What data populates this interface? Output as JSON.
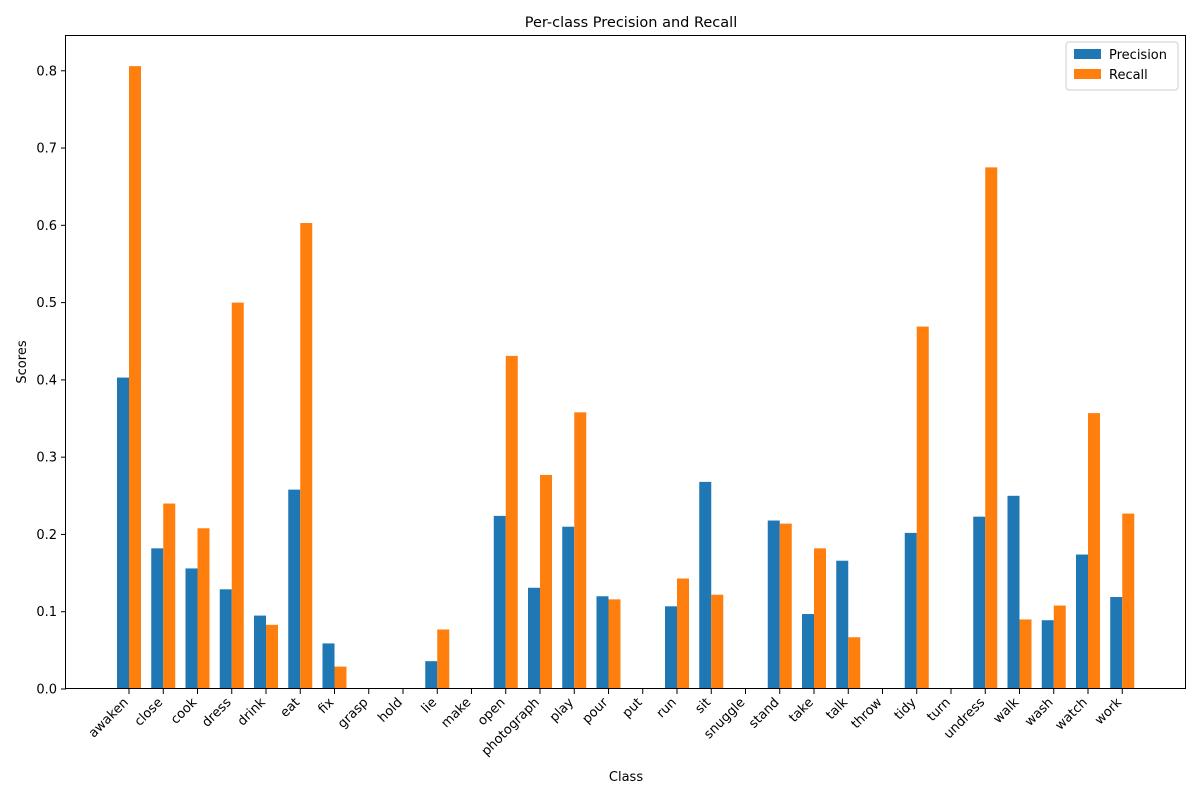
{
  "chart_data": {
    "type": "bar",
    "title": "Per-class Precision and Recall",
    "xlabel": "Class",
    "ylabel": "Scores",
    "ylim": [
      0,
      0.845
    ],
    "yticks": [
      0.0,
      0.1,
      0.2,
      0.3,
      0.4,
      0.5,
      0.6,
      0.7,
      0.8
    ],
    "ytick_labels": [
      "0.0",
      "0.1",
      "0.2",
      "0.3",
      "0.4",
      "0.5",
      "0.6",
      "0.7",
      "0.8"
    ],
    "grid": false,
    "legend_position": "top-right",
    "categories": [
      "awaken",
      "close",
      "cook",
      "dress",
      "drink",
      "eat",
      "fix",
      "grasp",
      "hold",
      "lie",
      "make",
      "open",
      "photograph",
      "play",
      "pour",
      "put",
      "run",
      "sit",
      "snuggle",
      "stand",
      "take",
      "talk",
      "throw",
      "tidy",
      "turn",
      "undress",
      "walk",
      "wash",
      "watch",
      "work"
    ],
    "series": [
      {
        "name": "Precision",
        "color": "#1f77b4",
        "values": [
          0.403,
          0.182,
          0.156,
          0.129,
          0.095,
          0.258,
          0.059,
          0.0,
          0.0,
          0.036,
          0.0,
          0.224,
          0.131,
          0.21,
          0.12,
          0.0,
          0.107,
          0.268,
          0.0,
          0.218,
          0.097,
          0.166,
          0.0,
          0.202,
          0.0,
          0.223,
          0.25,
          0.089,
          0.174,
          0.119
        ]
      },
      {
        "name": "Recall",
        "color": "#ff7f0e",
        "values": [
          0.806,
          0.24,
          0.208,
          0.5,
          0.083,
          0.603,
          0.029,
          0.0,
          0.0,
          0.077,
          0.0,
          0.431,
          0.277,
          0.358,
          0.116,
          0.0,
          0.143,
          0.122,
          0.0,
          0.214,
          0.182,
          0.067,
          0.0,
          0.469,
          0.0,
          0.675,
          0.09,
          0.108,
          0.357,
          0.227
        ]
      }
    ]
  }
}
